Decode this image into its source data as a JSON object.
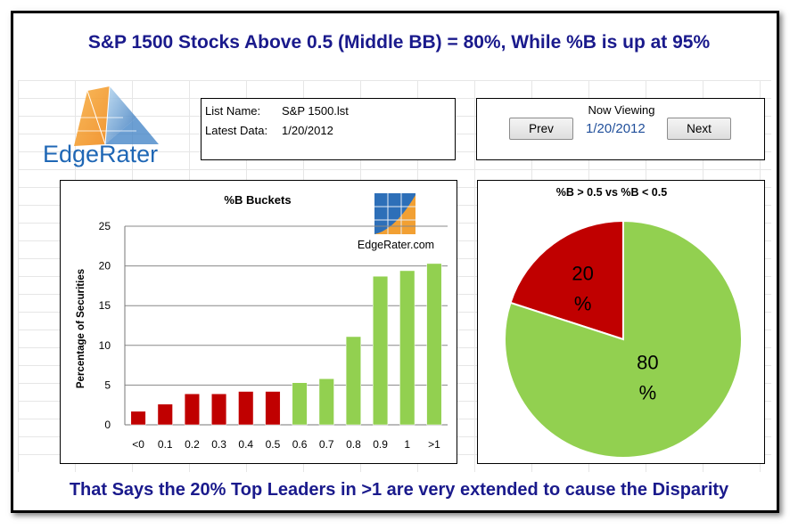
{
  "header": {
    "title": "S&P 1500 Stocks Above 0.5 (Middle BB) = 80%, While %B is up at 95%"
  },
  "footer": {
    "text": "That Says the 20% Top Leaders in >1 are very extended to cause the Disparity"
  },
  "logo": {
    "text": "EdgeRater"
  },
  "list_info": {
    "list_name_label": "List Name:",
    "list_name_value": "S&P 1500.lst",
    "latest_data_label": "Latest Data:",
    "latest_data_value": "1/20/2012"
  },
  "navigator": {
    "heading": "Now Viewing",
    "prev_label": "Prev",
    "next_label": "Next",
    "current_date": "1/20/2012"
  },
  "colors": {
    "title": "#1a1a8c",
    "red": "#c00000",
    "green": "#92d050",
    "date_blue": "#1f4e9a"
  },
  "chart_data": [
    {
      "type": "bar",
      "title": "%B Buckets",
      "watermark": "EdgeRater.com",
      "ylabel": "Percentage of Securities",
      "xlabel": "",
      "ylim": [
        0,
        25
      ],
      "yticks": [
        0,
        5,
        10,
        15,
        20,
        25
      ],
      "grid": true,
      "categories": [
        "<0",
        "0.1",
        "0.2",
        "0.3",
        "0.4",
        "0.5",
        "0.6",
        "0.7",
        "0.8",
        "0.9",
        "1",
        ">1"
      ],
      "values": [
        1.7,
        2.6,
        3.9,
        3.9,
        4.2,
        4.2,
        5.3,
        5.8,
        11.1,
        18.7,
        19.4,
        20.3
      ],
      "bar_colors": [
        "#c00000",
        "#c00000",
        "#c00000",
        "#c00000",
        "#c00000",
        "#c00000",
        "#92d050",
        "#92d050",
        "#92d050",
        "#92d050",
        "#92d050",
        "#92d050"
      ]
    },
    {
      "type": "pie",
      "title": "%B > 0.5 vs %B < 0.5",
      "slices": [
        {
          "value": 20,
          "label_top": "20",
          "label_bottom": "%",
          "color": "#c00000"
        },
        {
          "value": 80,
          "label_top": "80",
          "label_bottom": "%",
          "color": "#92d050"
        }
      ]
    }
  ]
}
